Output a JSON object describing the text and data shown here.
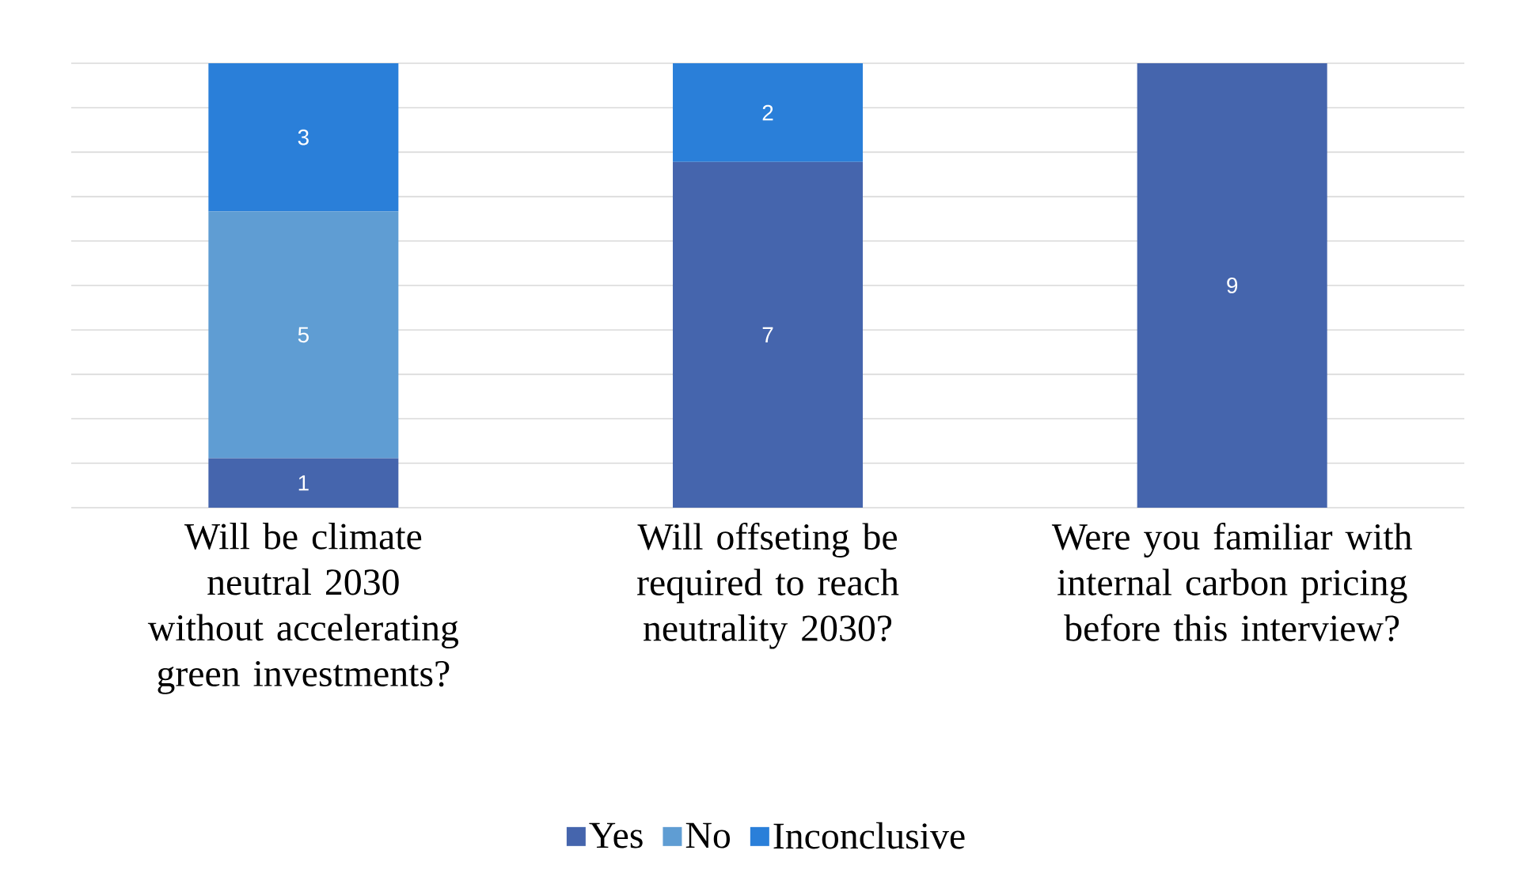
{
  "chart_data": {
    "type": "bar",
    "stacked": true,
    "categories": [
      "Will be climate neutral 2030 without accelerating green investments?",
      "Will offseting be required to reach neutrality 2030?",
      "Were you familiar with internal carbon pricing before this interview?"
    ],
    "series": [
      {
        "name": "Yes",
        "color": "#4565ad",
        "values": [
          1,
          7,
          9
        ],
        "value_labels": [
          "1",
          "7",
          "9"
        ]
      },
      {
        "name": "No",
        "color": "#5f9dd3",
        "values": [
          5,
          0,
          0
        ],
        "value_labels": [
          "5",
          null,
          null
        ]
      },
      {
        "name": "Inconclusive",
        "color": "#2a7fd9",
        "values": [
          3,
          2,
          0
        ],
        "value_labels": [
          "3",
          "2",
          null
        ]
      }
    ],
    "ylim": [
      0,
      9
    ],
    "yticks": [
      {
        "value": 0,
        "label": null
      },
      {
        "value": 0.9,
        "label": null
      },
      {
        "value": 1.8,
        "label": null
      },
      {
        "value": 2.7,
        "label": null
      },
      {
        "value": 3.6,
        "label": null
      },
      {
        "value": 4.5,
        "label": null
      },
      {
        "value": 5.4,
        "label": null
      },
      {
        "value": 6.3,
        "label": null
      },
      {
        "value": 7.2,
        "label": null
      },
      {
        "value": 8.1,
        "label": null
      },
      {
        "value": 9,
        "label": null
      }
    ],
    "tick_labels": "x",
    "grid": "y",
    "legend": "bottom"
  }
}
